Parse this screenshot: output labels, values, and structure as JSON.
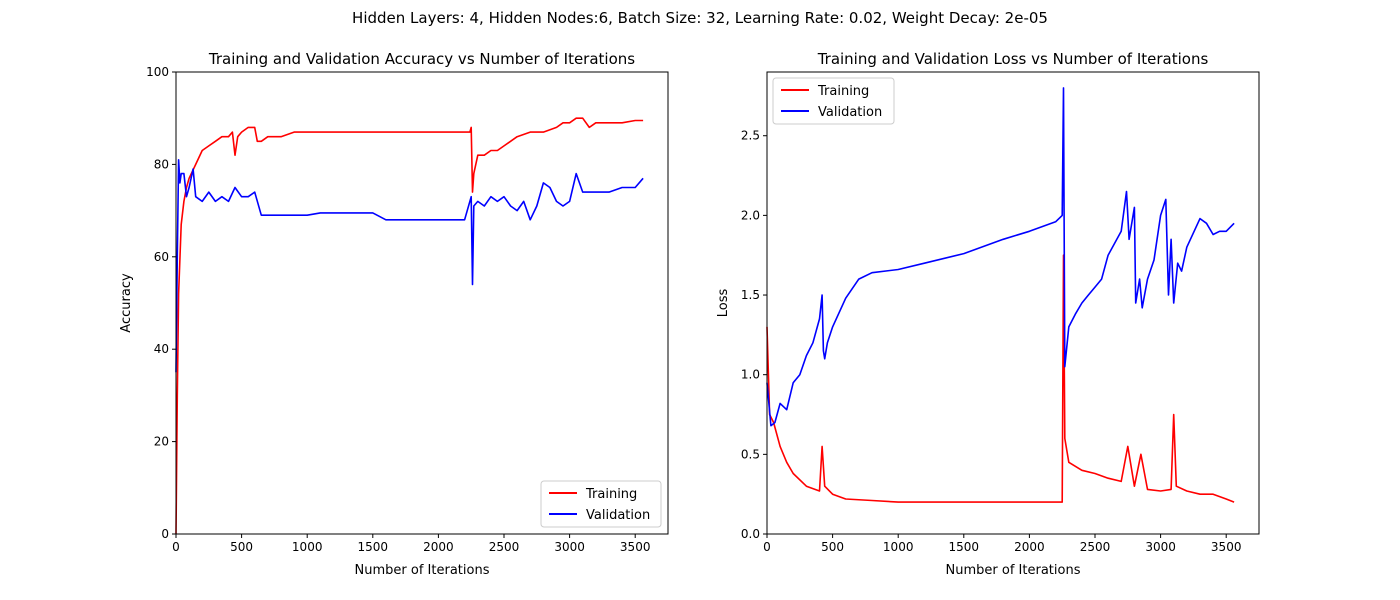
{
  "figure": {
    "suptitle": "Hidden Layers: 4, Hidden Nodes:6, Batch Size: 32, Learning Rate: 0.02, Weight Decay: 2e-05"
  },
  "colors": {
    "training": "#ff0000",
    "validation": "#0000ff",
    "axes": "#000000",
    "background": "#ffffff"
  },
  "chart_data": [
    {
      "type": "line",
      "title": "Training and Validation Accuracy vs Number of Iterations",
      "xlabel": "Number of Iterations",
      "ylabel": "Accuracy",
      "xlim": [
        0,
        3750
      ],
      "ylim": [
        0,
        100
      ],
      "xticks": [
        0,
        500,
        1000,
        1500,
        2000,
        2500,
        3000,
        3500
      ],
      "yticks": [
        0,
        20,
        40,
        60,
        80,
        100
      ],
      "grid": false,
      "legend_position": "lower-right",
      "series": [
        {
          "name": "Training",
          "color": "#ff0000",
          "x": [
            0,
            10,
            20,
            40,
            60,
            80,
            100,
            150,
            200,
            250,
            300,
            350,
            400,
            430,
            450,
            470,
            500,
            550,
            600,
            620,
            650,
            700,
            800,
            900,
            1000,
            1500,
            2000,
            2240,
            2250,
            2260,
            2270,
            2300,
            2350,
            2400,
            2450,
            2500,
            2600,
            2700,
            2800,
            2900,
            2950,
            3000,
            3050,
            3100,
            3150,
            3200,
            3300,
            3400,
            3500,
            3560
          ],
          "y": [
            0,
            30,
            52,
            67,
            72,
            75,
            77,
            80,
            83,
            84,
            85,
            86,
            86,
            87,
            82,
            86,
            87,
            88,
            88,
            85,
            85,
            86,
            86,
            87,
            87,
            87,
            87,
            87,
            88,
            74,
            78,
            82,
            82,
            83,
            83,
            84,
            86,
            87,
            87,
            88,
            89,
            89,
            90,
            90,
            88,
            89,
            89,
            89,
            89.5,
            89.5
          ]
        },
        {
          "name": "Validation",
          "color": "#0000ff",
          "x": [
            0,
            10,
            20,
            30,
            40,
            60,
            80,
            100,
            130,
            150,
            200,
            250,
            300,
            350,
            400,
            450,
            500,
            550,
            600,
            650,
            700,
            800,
            1000,
            1100,
            1300,
            1500,
            1600,
            1800,
            2000,
            2200,
            2250,
            2260,
            2270,
            2300,
            2350,
            2400,
            2450,
            2500,
            2550,
            2600,
            2650,
            2700,
            2750,
            2800,
            2850,
            2900,
            2950,
            3000,
            3050,
            3100,
            3150,
            3200,
            3300,
            3400,
            3500,
            3560
          ],
          "y": [
            35,
            60,
            81,
            76,
            78,
            78,
            73,
            75,
            79,
            73,
            72,
            74,
            72,
            73,
            72,
            75,
            73,
            73,
            74,
            69,
            69,
            69,
            69,
            69.5,
            69.5,
            69.5,
            68,
            68,
            68,
            68,
            73,
            54,
            71,
            72,
            71,
            73,
            72,
            73,
            71,
            70,
            72,
            68,
            71,
            76,
            75,
            72,
            71,
            72,
            78,
            74,
            74,
            74,
            74,
            75,
            75,
            77
          ]
        }
      ]
    },
    {
      "type": "line",
      "title": "Training and Validation Loss vs Number of Iterations",
      "xlabel": "Number of Iterations",
      "ylabel": "Loss",
      "xlim": [
        0,
        3750
      ],
      "ylim": [
        0,
        2.9
      ],
      "xticks": [
        0,
        500,
        1000,
        1500,
        2000,
        2500,
        3000,
        3500
      ],
      "yticks": [
        0.0,
        0.5,
        1.0,
        1.5,
        2.0,
        2.5
      ],
      "grid": false,
      "legend_position": "upper-left",
      "series": [
        {
          "name": "Training",
          "color": "#ff0000",
          "x": [
            0,
            20,
            50,
            100,
            150,
            200,
            300,
            400,
            420,
            440,
            500,
            600,
            800,
            1000,
            1500,
            2000,
            2250,
            2260,
            2270,
            2300,
            2400,
            2500,
            2600,
            2700,
            2750,
            2800,
            2850,
            2900,
            3000,
            3080,
            3100,
            3120,
            3200,
            3300,
            3400,
            3500,
            3560
          ],
          "y": [
            1.3,
            0.75,
            0.7,
            0.55,
            0.45,
            0.38,
            0.3,
            0.27,
            0.55,
            0.3,
            0.25,
            0.22,
            0.21,
            0.2,
            0.2,
            0.2,
            0.2,
            1.75,
            0.6,
            0.45,
            0.4,
            0.38,
            0.35,
            0.33,
            0.55,
            0.3,
            0.5,
            0.28,
            0.27,
            0.28,
            0.75,
            0.3,
            0.27,
            0.25,
            0.25,
            0.22,
            0.2
          ]
        },
        {
          "name": "Validation",
          "color": "#0000ff",
          "x": [
            0,
            30,
            60,
            100,
            150,
            200,
            250,
            300,
            350,
            400,
            420,
            430,
            440,
            460,
            500,
            600,
            700,
            800,
            1000,
            1200,
            1500,
            1800,
            2000,
            2200,
            2250,
            2260,
            2270,
            2300,
            2350,
            2400,
            2450,
            2500,
            2550,
            2600,
            2700,
            2740,
            2760,
            2800,
            2810,
            2840,
            2860,
            2900,
            2950,
            3000,
            3040,
            3060,
            3080,
            3100,
            3130,
            3160,
            3200,
            3300,
            3350,
            3400,
            3450,
            3500,
            3560
          ],
          "y": [
            0.95,
            0.68,
            0.7,
            0.82,
            0.78,
            0.95,
            1.0,
            1.12,
            1.2,
            1.35,
            1.5,
            1.15,
            1.1,
            1.2,
            1.3,
            1.48,
            1.6,
            1.64,
            1.66,
            1.7,
            1.76,
            1.85,
            1.9,
            1.96,
            2.0,
            2.8,
            1.05,
            1.3,
            1.38,
            1.45,
            1.5,
            1.55,
            1.6,
            1.75,
            1.9,
            2.15,
            1.85,
            2.05,
            1.45,
            1.6,
            1.42,
            1.6,
            1.72,
            2.0,
            2.1,
            1.5,
            1.85,
            1.45,
            1.7,
            1.65,
            1.8,
            1.98,
            1.95,
            1.88,
            1.9,
            1.9,
            1.95
          ]
        }
      ]
    }
  ]
}
